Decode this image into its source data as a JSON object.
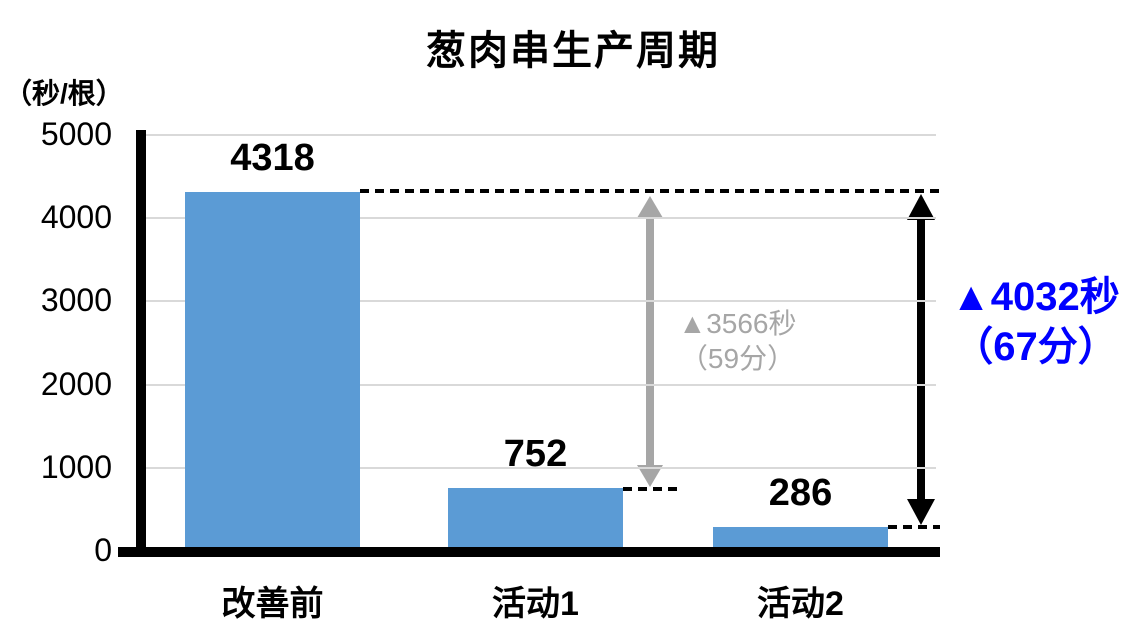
{
  "chart_data": {
    "type": "bar",
    "title": "葱肉串生产周期",
    "ylabel": "（秒/根）",
    "xlabel": "",
    "categories": [
      "改善前",
      "活动1",
      "活动2"
    ],
    "values": [
      4318,
      752,
      286
    ],
    "value_labels": [
      "4318",
      "752",
      "286"
    ],
    "y_ticks": [
      0,
      1000,
      2000,
      3000,
      4000,
      5000
    ],
    "ylim": [
      0,
      5000
    ],
    "grid": true,
    "legend_position": "none",
    "bar_color": "#5B9BD5",
    "gridline_color": "#D9D9D9",
    "axis_color": "#000000",
    "annotations": [
      {
        "id": "reduction-activity1",
        "line1": "▲3566秒",
        "line2": "（59分）",
        "color": "#A6A6A6",
        "arrow_color": "#A6A6A6",
        "from_value": 4318,
        "to_value": 752
      },
      {
        "id": "reduction-activity2",
        "line1": "▲4032秒",
        "line2": "（67分）",
        "color": "#0000FF",
        "arrow_color": "#000000",
        "from_value": 4318,
        "to_value": 286
      }
    ]
  }
}
